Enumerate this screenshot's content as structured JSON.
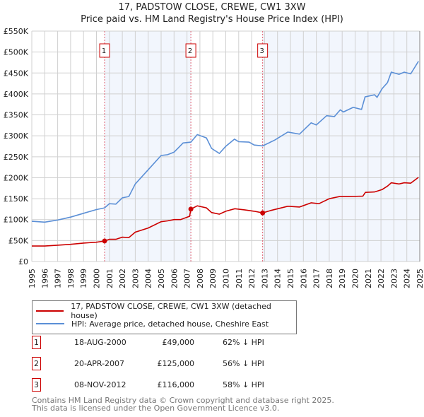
{
  "title": "17, PADSTOW CLOSE, CREWE, CW1 3XW",
  "subtitle": "Price paid vs. HM Land Registry's House Price Index (HPI)",
  "chart_data": {
    "type": "line",
    "title": "17, PADSTOW CLOSE, CREWE, CW1 3XW — Price paid vs. HM Land Registry's House Price Index (HPI)",
    "xlim": [
      1995,
      2025
    ],
    "ylim": [
      0,
      550000
    ],
    "grid": true,
    "x_ticks": [
      "1995",
      "1996",
      "1997",
      "1998",
      "1999",
      "2000",
      "2001",
      "2002",
      "2003",
      "2004",
      "2005",
      "2006",
      "2007",
      "2008",
      "2009",
      "2010",
      "2011",
      "2012",
      "2013",
      "2014",
      "2015",
      "2016",
      "2017",
      "2018",
      "2019",
      "2020",
      "2021",
      "2022",
      "2023",
      "2024",
      "2025"
    ],
    "y_ticks": [
      {
        "v": 0,
        "label": "£0"
      },
      {
        "v": 50000,
        "label": "£50K"
      },
      {
        "v": 100000,
        "label": "£100K"
      },
      {
        "v": 150000,
        "label": "£150K"
      },
      {
        "v": 200000,
        "label": "£200K"
      },
      {
        "v": 250000,
        "label": "£250K"
      },
      {
        "v": 300000,
        "label": "£300K"
      },
      {
        "v": 350000,
        "label": "£350K"
      },
      {
        "v": 400000,
        "label": "£400K"
      },
      {
        "v": 450000,
        "label": "£450K"
      },
      {
        "v": 500000,
        "label": "£500K"
      },
      {
        "v": 550000,
        "label": "£550K"
      }
    ],
    "shaded_ranges": [
      [
        2000.63,
        2007.3
      ],
      [
        2012.85,
        2025
      ]
    ],
    "series": [
      {
        "name": "17, PADSTOW CLOSE, CREWE, CW1 3XW (detached house)",
        "color": "#cc0000",
        "x": [
          1995,
          1996,
          1997,
          1998,
          1999,
          2000,
          2000.63,
          2001,
          2001.5,
          2002,
          2002.5,
          2003,
          2004,
          2005,
          2005.5,
          2006,
          2006.5,
          2007.2,
          2007.3,
          2007.8,
          2008.5,
          2008.9,
          2009.5,
          2010,
          2010.7,
          2011.5,
          2012.2,
          2012.85,
          2013.5,
          2014.8,
          2015.7,
          2016.6,
          2017.2,
          2018,
          2018.8,
          2019.5,
          2020.6,
          2020.8,
          2021.5,
          2022.1,
          2022.5,
          2022.8,
          2023.4,
          2023.8,
          2024.3,
          2024.9
        ],
        "y": [
          37000,
          37000,
          39000,
          41000,
          44000,
          46000,
          49000,
          53000,
          53000,
          58000,
          57000,
          70000,
          80000,
          95000,
          97000,
          100000,
          100000,
          108000,
          125000,
          133000,
          128000,
          117000,
          113000,
          120000,
          126000,
          123000,
          120000,
          116000,
          122000,
          132000,
          130000,
          140000,
          138000,
          150000,
          155000,
          155000,
          156000,
          165000,
          166000,
          172000,
          180000,
          188000,
          185000,
          188000,
          187000,
          201000
        ]
      },
      {
        "name": "HPI: Average price, detached house, Cheshire East",
        "color": "#5b8fd6",
        "x": [
          1995,
          1996,
          1997,
          1998,
          1999,
          2000,
          2000.63,
          2001,
          2001.5,
          2002,
          2002.5,
          2003,
          2004,
          2005,
          2005.5,
          2006,
          2006.7,
          2007.3,
          2007.8,
          2008.5,
          2008.9,
          2009.5,
          2010,
          2010.67,
          2011,
          2011.8,
          2012.2,
          2012.85,
          2013.8,
          2014.8,
          2015.7,
          2016.6,
          2017,
          2017.8,
          2018.4,
          2018.85,
          2019.1,
          2019.85,
          2020.5,
          2020.77,
          2021.5,
          2021.7,
          2022.1,
          2022.5,
          2022.8,
          2023.4,
          2023.8,
          2024.3,
          2024.5,
          2024.9
        ],
        "y": [
          96000,
          94000,
          99000,
          106000,
          115000,
          124000,
          128000,
          138000,
          137000,
          152000,
          155000,
          185000,
          219000,
          253000,
          255000,
          261000,
          283000,
          285000,
          303000,
          295000,
          270000,
          258000,
          275000,
          292000,
          286000,
          285000,
          278000,
          276000,
          290000,
          309000,
          304000,
          331000,
          326000,
          348000,
          346000,
          362000,
          357000,
          368000,
          363000,
          393000,
          398000,
          392000,
          413000,
          427000,
          452000,
          447000,
          452000,
          448000,
          458000,
          478000
        ]
      }
    ],
    "sales": [
      {
        "n": "1",
        "x": 2000.63,
        "y": 49000
      },
      {
        "n": "2",
        "x": 2007.3,
        "y": 125000
      },
      {
        "n": "3",
        "x": 2012.85,
        "y": 116000
      }
    ],
    "legend_placement": "below"
  },
  "legend": {
    "property": "17, PADSTOW CLOSE, CREWE, CW1 3XW (detached house)",
    "hpi": "HPI: Average price, detached house, Cheshire East"
  },
  "table": [
    {
      "n": "1",
      "date": "18-AUG-2000",
      "price": "£49,000",
      "hpi": "62% ↓ HPI"
    },
    {
      "n": "2",
      "date": "20-APR-2007",
      "price": "£125,000",
      "hpi": "56% ↓ HPI"
    },
    {
      "n": "3",
      "date": "08-NOV-2012",
      "price": "£116,000",
      "hpi": "58% ↓ HPI"
    }
  ],
  "footer": {
    "line1": "Contains HM Land Registry data © Crown copyright and database right 2025.",
    "line2": "This data is licensed under the Open Government Licence v3.0."
  }
}
